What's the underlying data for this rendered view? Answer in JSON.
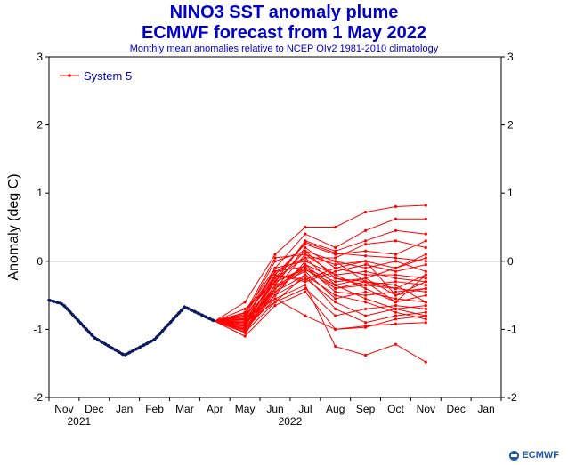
{
  "header": {
    "title": "NINO3 SST anomaly plume",
    "subtitle": "ECMWF forecast from 1 May 2022",
    "note": "Monthly mean anomalies relative to NCEP OIv2 1981-2010 climatology"
  },
  "logo": {
    "text": "ECMWF",
    "icon": "ecmwf-logo-icon"
  },
  "chart_data": {
    "type": "line",
    "ylabel": "Anomaly (deg C)",
    "ylim": [
      -2,
      3
    ],
    "yticks": [
      -2,
      -1,
      0,
      1,
      2,
      3
    ],
    "y_tick_labels": [
      "-2",
      "-1",
      "0",
      "1",
      "2",
      "3"
    ],
    "xlim": [
      -0.5,
      14.5
    ],
    "x_months": [
      "Nov",
      "Dec",
      "Jan",
      "Feb",
      "Mar",
      "Apr",
      "May",
      "Jun",
      "Jul",
      "Aug",
      "Sep",
      "Oct",
      "Nov",
      "Dec",
      "Jan"
    ],
    "x_year_labels": [
      {
        "label": "2021",
        "month_index": 0.5
      },
      {
        "label": "2022",
        "month_index": 7.5
      }
    ],
    "zero_line": true,
    "legend": {
      "entries": [
        "System 5"
      ],
      "placement": "top-left"
    },
    "colors": {
      "observed": "#0a1a5c",
      "forecast": "#ff0000",
      "title": "#0000c8",
      "legend_text": "#0000c8"
    },
    "observed": {
      "x": [
        -0.5,
        -0.1,
        0,
        1,
        2,
        3,
        4,
        5
      ],
      "y": [
        -0.57,
        -0.62,
        -0.65,
        -1.12,
        -1.38,
        -1.15,
        -0.67,
        -0.88
      ]
    },
    "forecast": {
      "start_month_index": 5,
      "start_value": -0.88,
      "month_indices": [
        6,
        7,
        8,
        9,
        10,
        11,
        12
      ],
      "members": [
        [
          -1.0,
          -0.55,
          -0.8,
          -1.0,
          -0.97,
          -0.85,
          -0.8
        ],
        [
          -1.1,
          -0.2,
          -0.27,
          -0.1,
          0.0,
          -0.5,
          -0.4
        ],
        [
          -0.8,
          0.0,
          0.15,
          0.0,
          -0.3,
          -0.35,
          -0.6
        ],
        [
          -0.7,
          -0.3,
          -0.12,
          -0.35,
          -0.25,
          -0.5,
          -0.3
        ],
        [
          -0.9,
          -0.4,
          -0.12,
          -0.4,
          -0.3,
          -0.6,
          -0.2
        ],
        [
          -1.05,
          -0.4,
          0.1,
          -0.05,
          0.0,
          -0.1,
          0.05
        ],
        [
          -0.95,
          -0.2,
          0.25,
          0.1,
          0.15,
          0.1,
          0.3
        ],
        [
          -0.6,
          0.1,
          0.5,
          0.5,
          0.72,
          0.8,
          0.82
        ],
        [
          -0.75,
          -0.1,
          0.4,
          0.2,
          0.45,
          0.62,
          0.62
        ],
        [
          -0.85,
          -0.3,
          0.3,
          0.15,
          0.3,
          0.45,
          0.4
        ],
        [
          -1.0,
          -0.5,
          0.0,
          -0.2,
          -0.4,
          -0.6,
          -0.5
        ],
        [
          -0.9,
          -0.6,
          -0.2,
          -0.5,
          -0.6,
          -0.75,
          -0.85
        ],
        [
          -1.0,
          -0.45,
          -0.05,
          -0.25,
          -0.3,
          -0.4,
          -0.45
        ],
        [
          -0.95,
          -0.35,
          0.2,
          -0.1,
          -0.2,
          -0.2,
          -0.25
        ],
        [
          -0.8,
          -0.25,
          0.05,
          -0.35,
          -0.55,
          -0.7,
          -0.8
        ],
        [
          -0.85,
          -0.55,
          -0.35,
          -1.25,
          -1.38,
          -1.22,
          -1.48
        ],
        [
          -1.1,
          -0.65,
          -0.45,
          -1.0,
          -0.95,
          -0.92,
          -0.9
        ],
        [
          -0.92,
          -0.5,
          -0.25,
          -0.6,
          -0.8,
          -0.7,
          -0.65
        ],
        [
          -0.88,
          -0.3,
          -0.1,
          -0.3,
          -0.25,
          -0.1,
          0.1
        ],
        [
          -0.78,
          -0.15,
          0.05,
          0.05,
          0.25,
          0.3,
          0.2
        ],
        [
          -0.98,
          -0.4,
          -0.05,
          -0.4,
          -0.35,
          -0.3,
          -0.35
        ],
        [
          -0.82,
          -0.2,
          -0.3,
          -0.15,
          -0.05,
          -0.15,
          -0.05
        ],
        [
          -1.02,
          -0.35,
          -0.15,
          -0.55,
          -0.45,
          -0.55,
          -0.6
        ],
        [
          -0.9,
          -0.1,
          0.0,
          0.0,
          -0.1,
          0.0,
          -0.15
        ],
        [
          -0.86,
          -0.45,
          -0.2,
          -0.7,
          -0.9,
          -0.8,
          -0.75
        ],
        [
          -0.94,
          -0.25,
          0.28,
          0.12,
          0.08,
          0.05,
          0.0
        ],
        [
          -0.76,
          0.05,
          0.1,
          -0.2,
          -0.15,
          -0.25,
          -0.3
        ],
        [
          -1.04,
          -0.6,
          -0.4,
          -0.8,
          -0.7,
          -0.65,
          -0.7
        ],
        [
          -0.84,
          -0.15,
          -0.08,
          -0.45,
          -0.5,
          -0.45,
          -0.4
        ],
        [
          -0.96,
          -0.3,
          0.15,
          -0.25,
          -0.35,
          -0.4,
          -0.2
        ]
      ]
    }
  }
}
